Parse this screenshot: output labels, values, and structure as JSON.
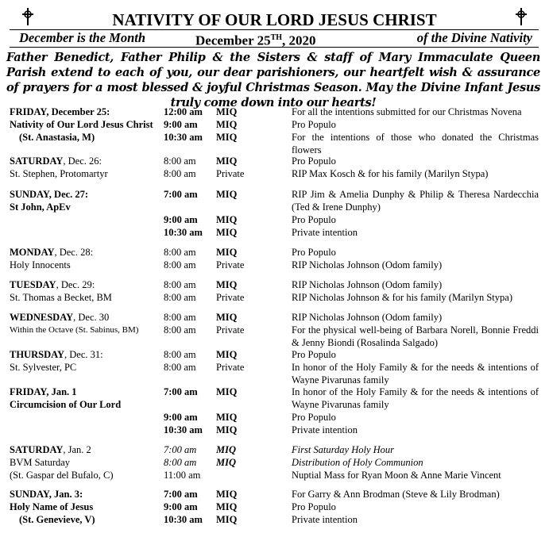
{
  "header": {
    "title": "NATIVITY OF OUR LORD JESUS CHRIST",
    "month_note": "December is the Month",
    "date": {
      "main": "December 25",
      "sup": "TH",
      "rest": ", 2020"
    },
    "nativity_note": "of the Divine Nativity",
    "greeting": "Father Benedict, Father Philip & the Sisters & staff of Mary Immaculate Queen Parish extend to each of you, our dear parishioners, our heartfelt wish & assurance of prayers for a most blessed & joyful Christmas Season. May the Divine Infant Jesus truly come down into our hearts!"
  },
  "schedule": [
    {
      "day": "FRIDAY",
      "date": ", December 25:",
      "lines": [
        "Nativity of Our Lord Jesus Christ",
        "(St. Anastasia, M)"
      ],
      "masses": [
        {
          "time": "12:00 am",
          "place": "MIQ",
          "intention": "For all the intentions submitted for our Christmas Novena"
        },
        {
          "time": "9:00 am",
          "place": "MIQ",
          "intention": "Pro Populo"
        },
        {
          "time": "10:30 am",
          "place": "MIQ",
          "intention": "For the intentions of those who donated the Christmas flowers"
        }
      ]
    },
    {
      "day": "SATURDAY",
      "date": ", Dec. 26:",
      "lines": [
        "St. Stephen, Protomartyr"
      ],
      "masses": [
        {
          "time": "8:00 am",
          "place": "MIQ",
          "intention": "Pro Populo"
        },
        {
          "time": "8:00 am",
          "place": "Private",
          "intention": "RIP Max Kosch & for his family (Marilyn Stypa)"
        }
      ]
    },
    {
      "day": "SUNDAY",
      "date": ", Dec. 27:",
      "lines": [
        "St John, ApEv"
      ],
      "masses": [
        {
          "time": "7:00 am",
          "place": "MIQ",
          "intention": "RIP Jim & Amelia Dunphy & Philip & Theresa Nardecchia (Ted & Irene Dunphy)"
        },
        {
          "time": "9:00 am",
          "place": "MIQ",
          "intention": "Pro Populo"
        },
        {
          "time": "10:30 am",
          "place": "MIQ",
          "intention": "Private intention"
        }
      ]
    },
    {
      "day": "MONDAY",
      "date": ", Dec. 28:",
      "lines": [
        "Holy Innocents"
      ],
      "masses": [
        {
          "time": "8:00 am",
          "place": "MIQ",
          "intention": "Pro Populo"
        },
        {
          "time": "8:00 am",
          "place": "Private",
          "intention": "RIP Nicholas Johnson (Odom family)"
        }
      ]
    },
    {
      "day": "TUESDAY",
      "date": ", Dec. 29:",
      "lines": [
        "St. Thomas a Becket, BM"
      ],
      "masses": [
        {
          "time": "8:00 am",
          "place": "MIQ",
          "intention": "RIP Nicholas Johnson (Odom family)"
        },
        {
          "time": "8:00 am",
          "place": "Private",
          "intention": "RIP Nicholas Johnson & for his family (Marilyn Stypa)"
        }
      ]
    },
    {
      "day": "WEDNESDAY",
      "date": ", Dec. 30",
      "lines": [
        "Within the Octave (St. Sabinus, BM)"
      ],
      "masses": [
        {
          "time": "8:00 am",
          "place": "MIQ",
          "intention": "RIP Nicholas Johnson (Odom family)"
        },
        {
          "time": "8:00 am",
          "place": "Private",
          "intention": "For the physical well-being of Barbara Norell, Bonnie Freddi & Jenny Biondi (Rosalinda Salgado)"
        }
      ]
    },
    {
      "day": "THURSDAY",
      "date": ", Dec. 31:",
      "lines": [
        "St. Sylvester, PC"
      ],
      "masses": [
        {
          "time": "8:00 am",
          "place": "MIQ",
          "intention": "Pro Populo"
        },
        {
          "time": "8:00 am",
          "place": "Private",
          "intention": "In honor of the Holy Family & for the needs & intentions of Wayne Pivarunas family"
        }
      ]
    },
    {
      "day": "FRIDAY",
      "date": ", Jan. 1",
      "lines": [
        "Circumcision of Our Lord"
      ],
      "masses": [
        {
          "time": "7:00 am",
          "place": "MIQ",
          "intention": "In honor of the Holy Family & for the needs & intentions of Wayne Pivarunas family"
        },
        {
          "time": "9:00 am",
          "place": "MIQ",
          "intention": "Pro Populo"
        },
        {
          "time": "10:30 am",
          "place": "MIQ",
          "intention": "Private intention"
        }
      ]
    },
    {
      "day": "SATURDAY",
      "date": ", Jan. 2",
      "lines": [
        "BVM Saturday",
        "(St. Gaspar del Bufalo, C)"
      ],
      "masses": [
        {
          "time": "7:00 am",
          "place": "MIQ",
          "intention": "First Saturday Holy Hour"
        },
        {
          "time": "8:00 am",
          "place": "MIQ",
          "intention": "Distribution of Holy Communion"
        },
        {
          "time": "11:00 am",
          "intention": "Nuptial Mass for Ryan Moon & Anne Marie Vincent"
        }
      ]
    },
    {
      "day": "SUNDAY",
      "date": ", Jan. 3:",
      "lines": [
        "Holy Name of Jesus",
        "(St. Genevieve, V)"
      ],
      "masses": [
        {
          "time": "7:00 am",
          "place": "MIQ",
          "intention": "For Garry & Ann Brodman (Steve & Lily Brodman)"
        },
        {
          "time": "9:00 am",
          "place": "MIQ",
          "intention": "Pro Populo"
        },
        {
          "time": "10:30 am",
          "place": "MIQ",
          "intention": "Private intention"
        }
      ]
    }
  ]
}
